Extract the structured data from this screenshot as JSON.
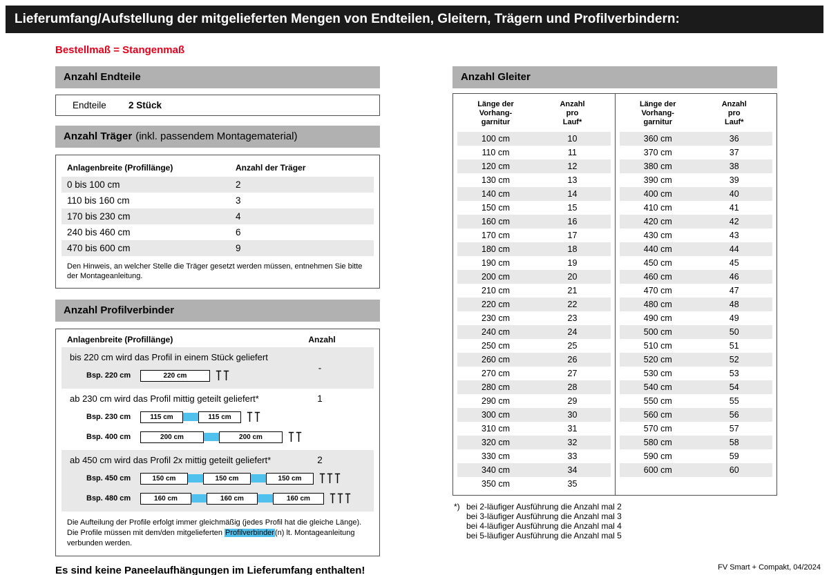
{
  "header": {
    "title": "Lieferumfang/Aufstellung der mitgelieferten Mengen von Endteilen, Gleitern, Trägern und Profilverbindern:"
  },
  "subtitle": "Bestellmaß = Stangenmaß",
  "colors": {
    "accent_red": "#e2001a",
    "section_bar_gray": "#b1b1b1",
    "row_stripe_gray": "#e8e8e8",
    "highlight_blue": "#4fc1ec",
    "topbar_black": "#1b1b1b"
  },
  "endteile": {
    "section_title": "Anzahl Endteile",
    "label": "Endteile",
    "value": "2 Stück"
  },
  "traeger": {
    "section_title": "Anzahl Träger",
    "section_suffix": "(inkl. passendem Montagematerial)",
    "col1": "Anlagenbreite (Profillänge)",
    "col2": "Anzahl der Träger",
    "rows": [
      {
        "range": "0 bis 100 cm",
        "count": "2"
      },
      {
        "range": "110 bis 160 cm",
        "count": "3"
      },
      {
        "range": "170 bis 230 cm",
        "count": "4"
      },
      {
        "range": "240 bis 460 cm",
        "count": "6"
      },
      {
        "range": "470 bis 600 cm",
        "count": "9"
      }
    ],
    "note": "Den Hinweis, an welcher Stelle die Träger gesetzt werden müssen, entnehmen Sie bitte der Montageanleitung."
  },
  "profilverbinder": {
    "section_title": "Anzahl Profilverbinder",
    "col1": "Anlagenbreite (Profillänge)",
    "col2": "Anzahl",
    "groups": [
      {
        "text": "bis 220 cm wird das Profil in einem Stück geliefert",
        "anzahl": "-",
        "examples": [
          {
            "label": "Bsp. 220 cm",
            "segments": [
              "220 cm"
            ],
            "brackets": 2
          }
        ]
      },
      {
        "text": "ab 230 cm wird das Profil mittig geteilt geliefert*",
        "anzahl": "1",
        "examples": [
          {
            "label": "Bsp. 230 cm",
            "segments": [
              "115 cm",
              "115 cm"
            ],
            "brackets": 2
          },
          {
            "label": "Bsp. 400 cm",
            "segments": [
              "200 cm",
              "200 cm"
            ],
            "brackets": 2
          }
        ]
      },
      {
        "text": "ab 450 cm wird das Profil 2x mittig geteilt geliefert*",
        "anzahl": "2",
        "examples": [
          {
            "label": "Bsp. 450 cm",
            "segments": [
              "150 cm",
              "150 cm",
              "150 cm"
            ],
            "brackets": 3
          },
          {
            "label": "Bsp. 480 cm",
            "segments": [
              "160 cm",
              "160 cm",
              "160 cm"
            ],
            "brackets": 3
          }
        ]
      }
    ],
    "note_part1": "Die Aufteilung der Profile erfolgt immer gleichmäßig (jedes Profil hat die gleiche Länge). Die Profile müssen mit dem/den mitgelieferten ",
    "note_highlight": "Profilverbinder",
    "note_part2": "(n) lt. Montageanleitung verbunden werden."
  },
  "bottom_note": "Es sind keine Paneelaufhängungen im Lieferumfang enthalten!",
  "gleiter": {
    "section_title": "Anzahl Gleiter",
    "head_len_line1": "Länge der",
    "head_len_line2": "Vorhang-",
    "head_len_line3": "garnitur",
    "head_count_line1": "Anzahl",
    "head_count_line2": "pro",
    "head_count_line3": "Lauf*",
    "left_rows": [
      {
        "len": "100 cm",
        "count": "10"
      },
      {
        "len": "110 cm",
        "count": "11"
      },
      {
        "len": "120 cm",
        "count": "12"
      },
      {
        "len": "130 cm",
        "count": "13"
      },
      {
        "len": "140 cm",
        "count": "14"
      },
      {
        "len": "150 cm",
        "count": "15"
      },
      {
        "len": "160 cm",
        "count": "16"
      },
      {
        "len": "170 cm",
        "count": "17"
      },
      {
        "len": "180 cm",
        "count": "18"
      },
      {
        "len": "190 cm",
        "count": "19"
      },
      {
        "len": "200 cm",
        "count": "20"
      },
      {
        "len": "210 cm",
        "count": "21"
      },
      {
        "len": "220 cm",
        "count": "22"
      },
      {
        "len": "230 cm",
        "count": "23"
      },
      {
        "len": "240 cm",
        "count": "24"
      },
      {
        "len": "250 cm",
        "count": "25"
      },
      {
        "len": "260 cm",
        "count": "26"
      },
      {
        "len": "270 cm",
        "count": "27"
      },
      {
        "len": "280 cm",
        "count": "28"
      },
      {
        "len": "290 cm",
        "count": "29"
      },
      {
        "len": "300 cm",
        "count": "30"
      },
      {
        "len": "310 cm",
        "count": "31"
      },
      {
        "len": "320 cm",
        "count": "32"
      },
      {
        "len": "330 cm",
        "count": "33"
      },
      {
        "len": "340 cm",
        "count": "34"
      },
      {
        "len": "350 cm",
        "count": "35"
      }
    ],
    "right_rows": [
      {
        "len": "360 cm",
        "count": "36"
      },
      {
        "len": "370 cm",
        "count": "37"
      },
      {
        "len": "380 cm",
        "count": "38"
      },
      {
        "len": "390 cm",
        "count": "39"
      },
      {
        "len": "400 cm",
        "count": "40"
      },
      {
        "len": "410 cm",
        "count": "41"
      },
      {
        "len": "420 cm",
        "count": "42"
      },
      {
        "len": "430 cm",
        "count": "43"
      },
      {
        "len": "440 cm",
        "count": "44"
      },
      {
        "len": "450 cm",
        "count": "45"
      },
      {
        "len": "460 cm",
        "count": "46"
      },
      {
        "len": "470 cm",
        "count": "47"
      },
      {
        "len": "480 cm",
        "count": "48"
      },
      {
        "len": "490 cm",
        "count": "49"
      },
      {
        "len": "500 cm",
        "count": "50"
      },
      {
        "len": "510 cm",
        "count": "51"
      },
      {
        "len": "520 cm",
        "count": "52"
      },
      {
        "len": "530 cm",
        "count": "53"
      },
      {
        "len": "540 cm",
        "count": "54"
      },
      {
        "len": "550 cm",
        "count": "55"
      },
      {
        "len": "560 cm",
        "count": "56"
      },
      {
        "len": "570 cm",
        "count": "57"
      },
      {
        "len": "580 cm",
        "count": "58"
      },
      {
        "len": "590 cm",
        "count": "59"
      },
      {
        "len": "600 cm",
        "count": "60"
      }
    ],
    "footnote_marker": "*)",
    "footnotes": [
      "bei 2-läufiger Ausführung die Anzahl mal 2",
      "bei 3-läufiger Ausführung die Anzahl mal 3",
      "bei 4-läufiger Ausführung die Anzahl mal 4",
      "bei 5-läufiger Ausführung die Anzahl mal 5"
    ]
  },
  "footer": "FV Smart + Compakt, 04/2024"
}
